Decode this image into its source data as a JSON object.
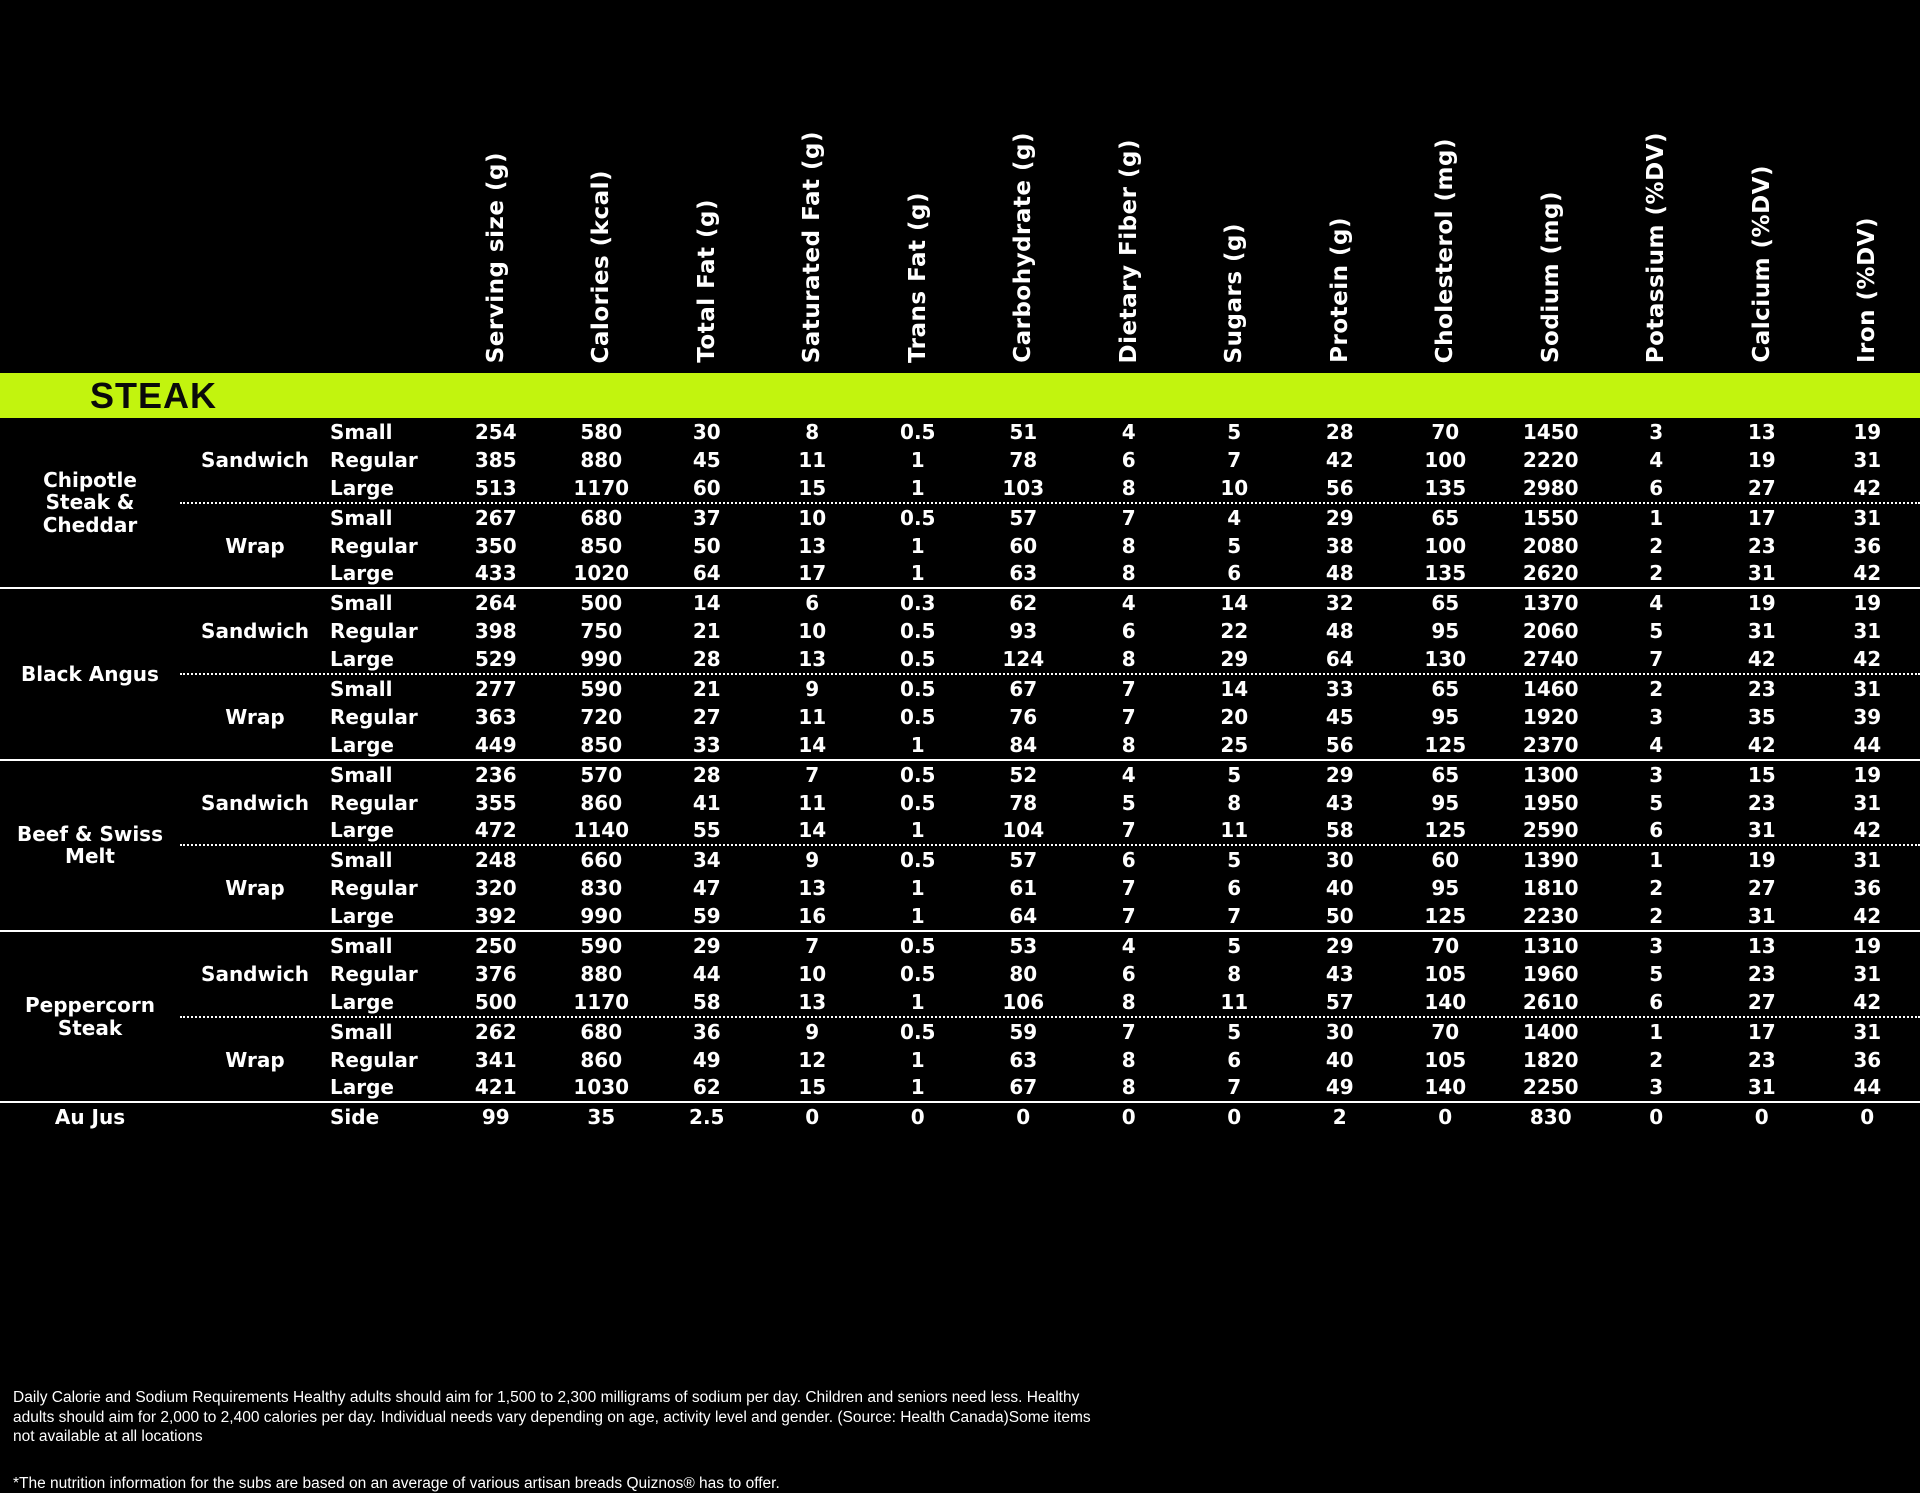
{
  "colors": {
    "background": "#000000",
    "banner_green": "#c2f40e",
    "text": "#ffffff",
    "banner_text": "#0a0a0a"
  },
  "banner": {
    "title": "STEAK"
  },
  "columns": [
    "Serving size (g)",
    "Calories (kcal)",
    "Total Fat (g)",
    "Saturated Fat (g)",
    "Trans Fat (g)",
    "Carbohydrate (g)",
    "Dietary Fiber (g)",
    "Sugars (g)",
    "Protein (g)",
    "Cholesterol (mg)",
    "Sodium (mg)",
    "Potassium (%DV)",
    "Calcium (%DV)",
    "Iron (%DV)"
  ],
  "groups": [
    {
      "name": "Chipotle Steak & Cheddar",
      "subgroups": [
        {
          "name": "Sandwich",
          "rows": [
            {
              "size": "Small",
              "values": [
                254,
                580,
                30,
                8,
                0.5,
                51,
                4,
                5,
                28,
                70,
                1450,
                3,
                13,
                19
              ]
            },
            {
              "size": "Regular",
              "values": [
                385,
                880,
                45,
                11,
                1,
                78,
                6,
                7,
                42,
                100,
                2220,
                4,
                19,
                31
              ]
            },
            {
              "size": "Large",
              "values": [
                513,
                1170,
                60,
                15,
                1,
                103,
                8,
                10,
                56,
                135,
                2980,
                6,
                27,
                42
              ]
            }
          ]
        },
        {
          "name": "Wrap",
          "rows": [
            {
              "size": "Small",
              "values": [
                267,
                680,
                37,
                10,
                0.5,
                57,
                7,
                4,
                29,
                65,
                1550,
                1,
                17,
                31
              ]
            },
            {
              "size": "Regular",
              "values": [
                350,
                850,
                50,
                13,
                1,
                60,
                8,
                5,
                38,
                100,
                2080,
                2,
                23,
                36
              ]
            },
            {
              "size": "Large",
              "values": [
                433,
                1020,
                64,
                17,
                1,
                63,
                8,
                6,
                48,
                135,
                2620,
                2,
                31,
                42
              ]
            }
          ]
        }
      ]
    },
    {
      "name": "Black Angus",
      "subgroups": [
        {
          "name": "Sandwich",
          "rows": [
            {
              "size": "Small",
              "values": [
                264,
                500,
                14,
                6,
                0.3,
                62,
                4,
                14,
                32,
                65,
                1370,
                4,
                19,
                19
              ]
            },
            {
              "size": "Regular",
              "values": [
                398,
                750,
                21,
                10,
                0.5,
                93,
                6,
                22,
                48,
                95,
                2060,
                5,
                31,
                31
              ]
            },
            {
              "size": "Large",
              "values": [
                529,
                990,
                28,
                13,
                0.5,
                124,
                8,
                29,
                64,
                130,
                2740,
                7,
                42,
                42
              ]
            }
          ]
        },
        {
          "name": "Wrap",
          "rows": [
            {
              "size": "Small",
              "values": [
                277,
                590,
                21,
                9,
                0.5,
                67,
                7,
                14,
                33,
                65,
                1460,
                2,
                23,
                31
              ]
            },
            {
              "size": "Regular",
              "values": [
                363,
                720,
                27,
                11,
                0.5,
                76,
                7,
                20,
                45,
                95,
                1920,
                3,
                35,
                39
              ]
            },
            {
              "size": "Large",
              "values": [
                449,
                850,
                33,
                14,
                1,
                84,
                8,
                25,
                56,
                125,
                2370,
                4,
                42,
                44
              ]
            }
          ]
        }
      ]
    },
    {
      "name": "Beef & Swiss Melt",
      "subgroups": [
        {
          "name": "Sandwich",
          "rows": [
            {
              "size": "Small",
              "values": [
                236,
                570,
                28,
                7,
                0.5,
                52,
                4,
                5,
                29,
                65,
                1300,
                3,
                15,
                19
              ]
            },
            {
              "size": "Regular",
              "values": [
                355,
                860,
                41,
                11,
                0.5,
                78,
                5,
                8,
                43,
                95,
                1950,
                5,
                23,
                31
              ]
            },
            {
              "size": "Large",
              "values": [
                472,
                1140,
                55,
                14,
                1,
                104,
                7,
                11,
                58,
                125,
                2590,
                6,
                31,
                42
              ]
            }
          ]
        },
        {
          "name": "Wrap",
          "rows": [
            {
              "size": "Small",
              "values": [
                248,
                660,
                34,
                9,
                0.5,
                57,
                6,
                5,
                30,
                60,
                1390,
                1,
                19,
                31
              ]
            },
            {
              "size": "Regular",
              "values": [
                320,
                830,
                47,
                13,
                1,
                61,
                7,
                6,
                40,
                95,
                1810,
                2,
                27,
                36
              ]
            },
            {
              "size": "Large",
              "values": [
                392,
                990,
                59,
                16,
                1,
                64,
                7,
                7,
                50,
                125,
                2230,
                2,
                31,
                42
              ]
            }
          ]
        }
      ]
    },
    {
      "name": "Peppercorn Steak",
      "subgroups": [
        {
          "name": "Sandwich",
          "rows": [
            {
              "size": "Small",
              "values": [
                250,
                590,
                29,
                7,
                0.5,
                53,
                4,
                5,
                29,
                70,
                1310,
                3,
                13,
                19
              ]
            },
            {
              "size": "Regular",
              "values": [
                376,
                880,
                44,
                10,
                0.5,
                80,
                6,
                8,
                43,
                105,
                1960,
                5,
                23,
                31
              ]
            },
            {
              "size": "Large",
              "values": [
                500,
                1170,
                58,
                13,
                1,
                106,
                8,
                11,
                57,
                140,
                2610,
                6,
                27,
                42
              ]
            }
          ]
        },
        {
          "name": "Wrap",
          "rows": [
            {
              "size": "Small",
              "values": [
                262,
                680,
                36,
                9,
                0.5,
                59,
                7,
                5,
                30,
                70,
                1400,
                1,
                17,
                31
              ]
            },
            {
              "size": "Regular",
              "values": [
                341,
                860,
                49,
                12,
                1,
                63,
                8,
                6,
                40,
                105,
                1820,
                2,
                23,
                36
              ]
            },
            {
              "size": "Large",
              "values": [
                421,
                1030,
                62,
                15,
                1,
                67,
                8,
                7,
                49,
                140,
                2250,
                3,
                31,
                44
              ]
            }
          ]
        }
      ]
    },
    {
      "name": "Au Jus",
      "subgroups": [
        {
          "name": "",
          "rows": [
            {
              "size": "Side",
              "values": [
                99,
                35,
                2.5,
                0,
                0,
                0,
                0,
                0,
                2,
                0,
                830,
                0,
                0,
                0
              ]
            }
          ]
        }
      ]
    }
  ],
  "footer": {
    "paragraph": "Daily Calorie and Sodium Requirements Healthy adults should aim for 1,500 to 2,300 milligrams of sodium per day. Children and seniors need less. Healthy adults should aim for 2,000 to 2,400 calories per day. Individual needs vary depending on age, activity level and gender. (Source: Health Canada)Some items not available at all locations",
    "note": "*The nutrition information for the subs are based on an average of various artisan breads Quiznos® has to offer."
  }
}
